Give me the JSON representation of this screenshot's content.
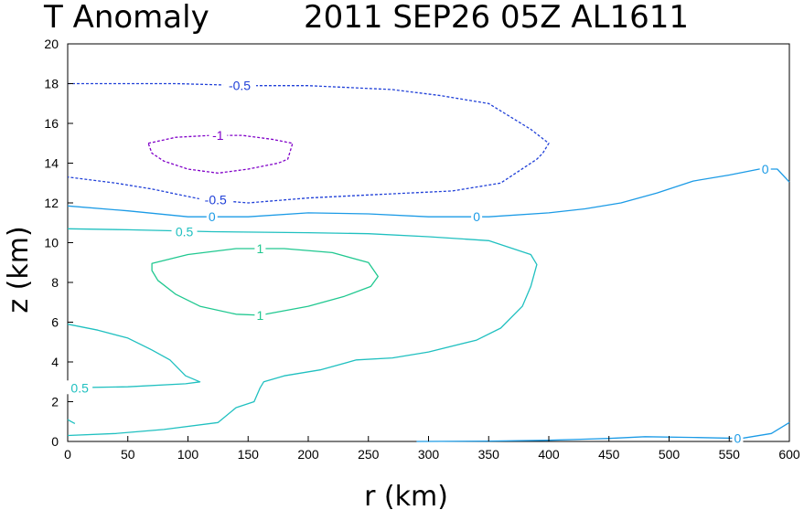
{
  "chart_data": {
    "type": "contour",
    "title_left": "T Anomaly",
    "title_right": "2011 SEP26 05Z  AL1611",
    "xlabel": "r (km)",
    "ylabel": "z (km)",
    "xlim": [
      0,
      600
    ],
    "ylim": [
      0,
      20
    ],
    "xticks": [
      "0",
      "50",
      "100",
      "150",
      "200",
      "250",
      "300",
      "350",
      "400",
      "450",
      "500",
      "550",
      "600"
    ],
    "yticks": [
      "0",
      "2",
      "4",
      "6",
      "8",
      "10",
      "12",
      "14",
      "16",
      "18",
      "20"
    ],
    "grid": false,
    "colors": {
      "neg1": "#8000c8",
      "neg05": "#2040d8",
      "zero": "#1c9be6",
      "pos05": "#20c0c0",
      "pos1": "#20c890"
    },
    "contours": [
      {
        "level": "-0.5",
        "style": "dashed",
        "color": "neg05",
        "points": [
          [
            0,
            18.0
          ],
          [
            90,
            18.0
          ],
          [
            150,
            17.9
          ],
          [
            200,
            17.9
          ],
          [
            270,
            17.7
          ],
          [
            310,
            17.4
          ],
          [
            350,
            17.0
          ],
          [
            385,
            15.7
          ],
          [
            400,
            15.0
          ],
          [
            395,
            14.5
          ],
          [
            390,
            14.2
          ],
          [
            360,
            13.0
          ],
          [
            320,
            12.6
          ],
          [
            250,
            12.4
          ],
          [
            200,
            12.25
          ],
          [
            150,
            12.0
          ],
          [
            110,
            12.2
          ],
          [
            70,
            12.7
          ],
          [
            40,
            13.0
          ],
          [
            0,
            13.3
          ]
        ]
      },
      {
        "level": "-1",
        "style": "dashed",
        "color": "neg1",
        "closed": true,
        "points": [
          [
            67,
            15.0
          ],
          [
            90,
            15.3
          ],
          [
            120,
            15.4
          ],
          [
            145,
            15.4
          ],
          [
            170,
            15.2
          ],
          [
            187,
            15.0
          ],
          [
            183,
            14.2
          ],
          [
            175,
            14.0
          ],
          [
            150,
            13.7
          ],
          [
            125,
            13.5
          ],
          [
            100,
            13.7
          ],
          [
            80,
            14.1
          ],
          [
            70,
            14.5
          ]
        ]
      },
      {
        "level": "0",
        "style": "solid",
        "color": "zero",
        "points": [
          [
            0,
            11.85
          ],
          [
            50,
            11.6
          ],
          [
            100,
            11.3
          ],
          [
            150,
            11.3
          ],
          [
            200,
            11.5
          ],
          [
            250,
            11.45
          ],
          [
            300,
            11.3
          ],
          [
            350,
            11.3
          ],
          [
            400,
            11.5
          ],
          [
            430,
            11.7
          ],
          [
            460,
            12.0
          ],
          [
            490,
            12.5
          ],
          [
            520,
            13.1
          ],
          [
            550,
            13.4
          ],
          [
            575,
            13.7
          ],
          [
            590,
            13.7
          ],
          [
            600,
            13.05
          ]
        ]
      },
      {
        "level": "0",
        "style": "solid",
        "color": "zero",
        "points": [
          [
            290,
            0.0
          ],
          [
            350,
            0.02
          ],
          [
            400,
            0.06
          ],
          [
            450,
            0.15
          ],
          [
            480,
            0.24
          ],
          [
            520,
            0.2
          ],
          [
            560,
            0.15
          ],
          [
            585,
            0.4
          ],
          [
            600,
            0.95
          ]
        ]
      },
      {
        "level": "0.5",
        "style": "solid",
        "color": "pos05",
        "points": [
          [
            0,
            10.7
          ],
          [
            50,
            10.65
          ],
          [
            120,
            10.55
          ],
          [
            200,
            10.5
          ],
          [
            250,
            10.45
          ],
          [
            300,
            10.3
          ],
          [
            350,
            10.1
          ],
          [
            385,
            9.4
          ],
          [
            390,
            8.9
          ],
          [
            385,
            7.8
          ],
          [
            378,
            6.8
          ],
          [
            360,
            5.7
          ],
          [
            340,
            5.1
          ],
          [
            300,
            4.5
          ],
          [
            270,
            4.2
          ],
          [
            240,
            4.1
          ],
          [
            210,
            3.6
          ],
          [
            180,
            3.3
          ],
          [
            163,
            3.0
          ],
          [
            160,
            2.7
          ],
          [
            155,
            2.0
          ],
          [
            140,
            1.7
          ],
          [
            125,
            0.95
          ],
          [
            80,
            0.6
          ],
          [
            40,
            0.4
          ],
          [
            0,
            0.3
          ]
        ]
      },
      {
        "level": "0.5",
        "style": "solid",
        "color": "pos05",
        "points": [
          [
            0,
            5.9
          ],
          [
            25,
            5.6
          ],
          [
            50,
            5.2
          ],
          [
            70,
            4.6
          ],
          [
            85,
            4.1
          ],
          [
            98,
            3.3
          ],
          [
            110,
            3.0
          ],
          [
            98,
            2.9
          ],
          [
            50,
            2.75
          ],
          [
            0,
            2.7
          ]
        ]
      },
      {
        "level": "0.5",
        "style": "solid",
        "color": "pos05",
        "points": [
          [
            0,
            1.1
          ],
          [
            3,
            1.0
          ],
          [
            6,
            0.9
          ]
        ]
      },
      {
        "level": "1",
        "style": "solid",
        "color": "pos1",
        "closed": true,
        "points": [
          [
            70,
            8.95
          ],
          [
            100,
            9.4
          ],
          [
            140,
            9.7
          ],
          [
            180,
            9.7
          ],
          [
            220,
            9.5
          ],
          [
            250,
            9.0
          ],
          [
            258,
            8.3
          ],
          [
            252,
            7.8
          ],
          [
            230,
            7.3
          ],
          [
            200,
            6.8
          ],
          [
            160,
            6.35
          ],
          [
            140,
            6.4
          ],
          [
            110,
            6.8
          ],
          [
            90,
            7.4
          ],
          [
            75,
            8.1
          ],
          [
            70,
            8.6
          ]
        ]
      }
    ],
    "labels": [
      {
        "text": "-0.5",
        "x": 143,
        "y": 17.9,
        "color": "neg05"
      },
      {
        "text": "-1",
        "x": 125,
        "y": 15.4,
        "color": "neg1"
      },
      {
        "text": "-0.5",
        "x": 123,
        "y": 12.15,
        "color": "neg05"
      },
      {
        "text": "0",
        "x": 120,
        "y": 11.3,
        "color": "zero"
      },
      {
        "text": "0",
        "x": 340,
        "y": 11.3,
        "color": "zero"
      },
      {
        "text": "0",
        "x": 580,
        "y": 13.7,
        "color": "zero"
      },
      {
        "text": "0",
        "x": 557,
        "y": 0.15,
        "color": "zero"
      },
      {
        "text": "0.5",
        "x": 97,
        "y": 10.55,
        "color": "pos05"
      },
      {
        "text": "0.5",
        "x": 10,
        "y": 2.7,
        "color": "pos05"
      },
      {
        "text": "1",
        "x": 160,
        "y": 9.7,
        "color": "pos1"
      },
      {
        "text": "1",
        "x": 160,
        "y": 6.35,
        "color": "pos1"
      }
    ]
  }
}
